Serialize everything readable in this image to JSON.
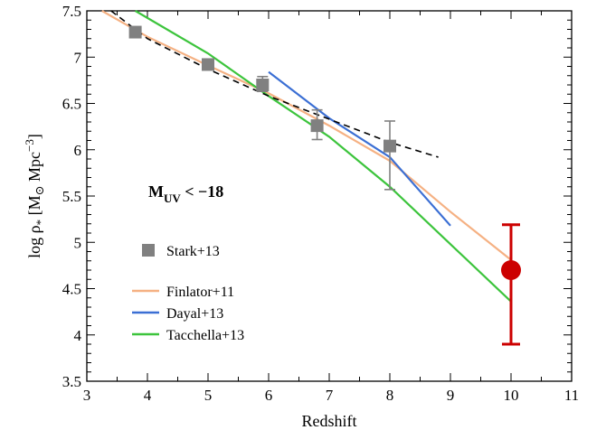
{
  "chart_data": {
    "type": "line",
    "xlabel": "Redshift",
    "ylabel_parts": {
      "main": "log ρ",
      "sub": "*",
      "bracket_open": " [M",
      "sun": "⊙",
      "unit": " Mpc",
      "sup": "−3",
      "bracket_close": "]"
    },
    "xlim": [
      3,
      11
    ],
    "ylim": [
      3.5,
      7.5
    ],
    "xticks": [
      "3",
      "4",
      "5",
      "6",
      "7",
      "8",
      "9",
      "10",
      "11"
    ],
    "yticks": [
      "3.5",
      "4",
      "4.5",
      "5",
      "5.5",
      "6",
      "6.5",
      "7",
      "7.5"
    ],
    "xtick_values": [
      3,
      4,
      5,
      6,
      7,
      8,
      9,
      10,
      11
    ],
    "ytick_values": [
      3.5,
      4,
      4.5,
      5,
      5.5,
      6,
      6.5,
      7,
      7.5
    ],
    "annotation": {
      "main": "M",
      "sub": "UV",
      "rest": " < −18"
    },
    "series": [
      {
        "name": "Stark+13",
        "kind": "markers",
        "color": "#808080",
        "x": [
          3.8,
          5.0,
          5.9,
          6.8,
          8.0
        ],
        "y": [
          7.27,
          6.92,
          6.7,
          6.26,
          6.04
        ],
        "yerr_low": [
          null,
          null,
          6.63,
          6.11,
          5.57
        ],
        "yerr_high": [
          null,
          null,
          6.79,
          6.43,
          6.31
        ]
      },
      {
        "name": "Finlator+11",
        "kind": "line",
        "color": "#f5b183",
        "x": [
          3.25,
          4.0,
          5.0,
          6.0,
          7.0,
          8.0,
          9.0,
          10.0
        ],
        "y": [
          7.5,
          7.22,
          6.91,
          6.61,
          6.26,
          5.88,
          5.33,
          4.81
        ]
      },
      {
        "name": "Dayal+13",
        "kind": "line",
        "color": "#3b6fd4",
        "x": [
          6.0,
          7.0,
          8.0,
          9.0
        ],
        "y": [
          6.84,
          6.34,
          5.92,
          5.18
        ]
      },
      {
        "name": "Tacchella+13",
        "kind": "line",
        "color": "#3cc43c",
        "x": [
          3.8,
          5.0,
          6.0,
          7.0,
          8.0,
          9.0,
          10.0
        ],
        "y": [
          7.5,
          7.04,
          6.58,
          6.14,
          5.6,
          4.98,
          4.36
        ]
      },
      {
        "name": "",
        "kind": "dashed",
        "color": "#000000",
        "x": [
          3.4,
          4.0,
          5.0,
          6.0,
          7.0,
          8.0,
          8.8
        ],
        "y": [
          7.5,
          7.2,
          6.87,
          6.58,
          6.33,
          6.08,
          5.92
        ]
      },
      {
        "name": "",
        "kind": "point",
        "color": "#cc0000",
        "x": [
          10.0
        ],
        "y": [
          4.7
        ],
        "yerr_low": [
          3.9
        ],
        "yerr_high": [
          5.19
        ]
      }
    ],
    "legend": {
      "placement": "left",
      "entries": [
        "Stark+13",
        "Finlator+11",
        "Dayal+13",
        "Tacchella+13"
      ]
    }
  }
}
